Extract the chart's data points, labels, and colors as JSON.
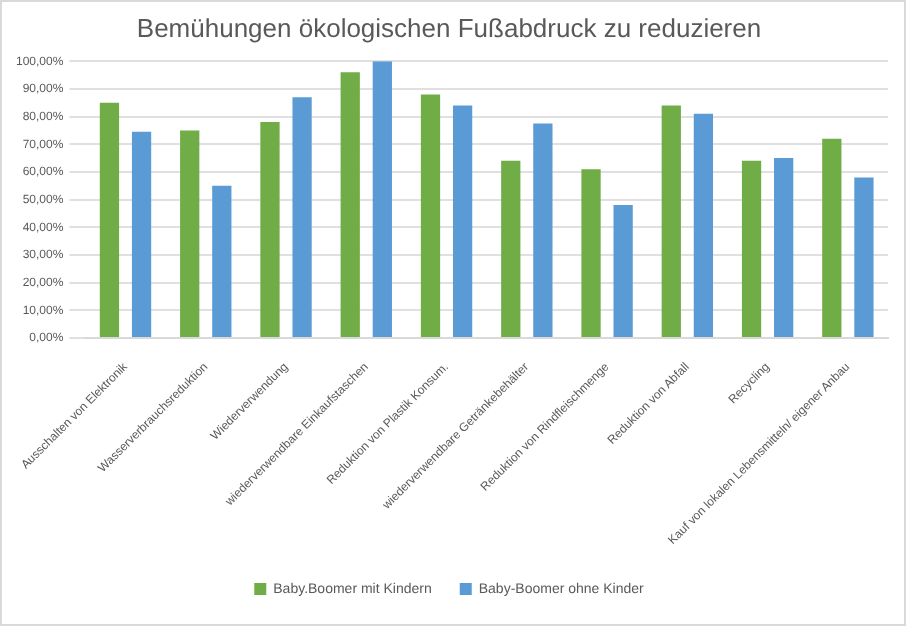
{
  "chart_data": {
    "type": "bar",
    "title": "Bemühungen ökologischen Fußabdruck zu reduzieren",
    "categories": [
      "Ausschalten von Elektronik",
      "Wasserverbrauchsreduktion",
      "Wiederverwendung",
      "wiederverwendbare Einkaufstaschen",
      "Reduktion von Plastik Konsum.",
      "wiederverwendbare Getränkebehälter",
      "Reduktion von Rindfleischmenge",
      "Reduktion von Abfall",
      "Recycling",
      "Kauf von lokalen Lebensmitteln/ eigener Anbau"
    ],
    "series": [
      {
        "name": "Baby.Boomer mit Kindern",
        "color": "#70ad47",
        "values": [
          85,
          75,
          78,
          96,
          88,
          64,
          61,
          84,
          64,
          72
        ]
      },
      {
        "name": "Baby-Boomer ohne Kinder",
        "color": "#5b9bd5",
        "values": [
          74.5,
          55,
          87,
          100,
          84,
          77.5,
          48,
          81,
          65,
          58
        ]
      }
    ],
    "ylim": [
      0,
      100
    ],
    "yticks": [
      {
        "value": 0,
        "label": "0,00%"
      },
      {
        "value": 10,
        "label": "10,00%"
      },
      {
        "value": 20,
        "label": "20,00%"
      },
      {
        "value": 30,
        "label": "30,00%"
      },
      {
        "value": 40,
        "label": "40,00%"
      },
      {
        "value": 50,
        "label": "50,00%"
      },
      {
        "value": 60,
        "label": "60,00%"
      },
      {
        "value": 70,
        "label": "70,00%"
      },
      {
        "value": 80,
        "label": "80,00%"
      },
      {
        "value": 90,
        "label": "90,00%"
      },
      {
        "value": 100,
        "label": "100,00%"
      }
    ],
    "grid": "y",
    "legend": "bottom"
  }
}
